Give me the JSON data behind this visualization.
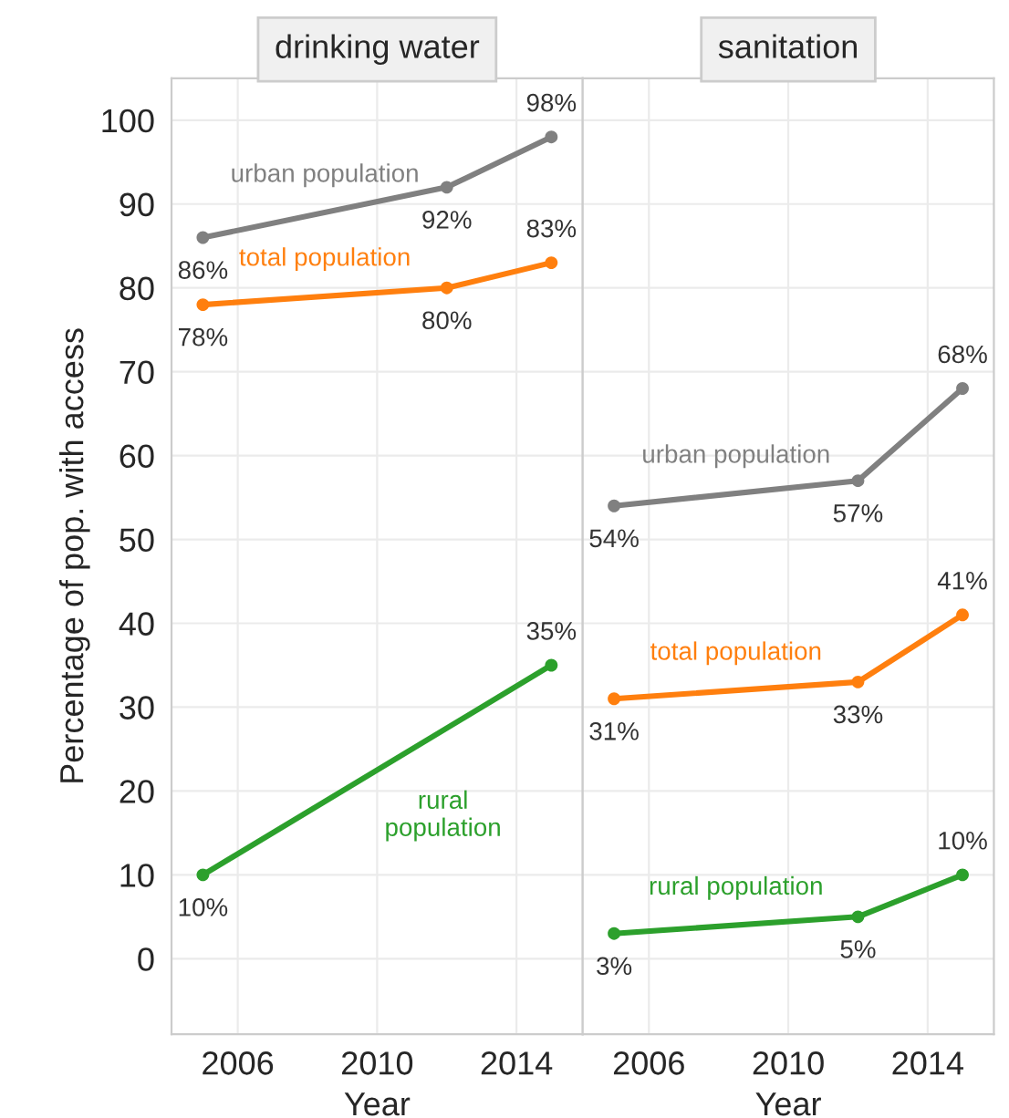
{
  "chart_data": [
    {
      "type": "line",
      "title": "drinking water",
      "xlabel": "Year",
      "ylabel": "Percentage of pop. with access",
      "x": [
        2005,
        2012,
        2015
      ],
      "xlim": [
        2004.1,
        2015.9
      ],
      "xticks": [
        2006,
        2010,
        2014
      ],
      "ylim": [
        -9,
        105
      ],
      "yticks": [
        0,
        10,
        20,
        30,
        40,
        50,
        60,
        70,
        80,
        90,
        100
      ],
      "grid": true,
      "marker": "circle",
      "line_style": "solid",
      "series": [
        {
          "name": "urban population",
          "color": "#808080",
          "values": [
            86,
            92,
            98
          ],
          "value_labels": [
            "86%",
            "92%",
            "98%"
          ]
        },
        {
          "name": "total population",
          "color": "#ff7f0e",
          "values": [
            78,
            80,
            83
          ],
          "value_labels": [
            "78%",
            "80%",
            "83%"
          ]
        },
        {
          "name": "rural population",
          "color": "#2ca02c",
          "values": [
            10,
            null,
            35
          ],
          "value_labels": [
            "10%",
            null,
            "35%"
          ]
        }
      ]
    },
    {
      "type": "line",
      "title": "sanitation",
      "xlabel": "Year",
      "x": [
        2005,
        2012,
        2015
      ],
      "xlim": [
        2004.1,
        2015.9
      ],
      "xticks": [
        2006,
        2010,
        2014
      ],
      "ylim": [
        -9,
        105
      ],
      "yticks": [
        0,
        10,
        20,
        30,
        40,
        50,
        60,
        70,
        80,
        90,
        100
      ],
      "tick_labels": "x",
      "grid": true,
      "marker": "circle",
      "line_style": "solid",
      "series": [
        {
          "name": "urban population",
          "color": "#808080",
          "values": [
            54,
            57,
            68
          ],
          "value_labels": [
            "54%",
            "57%",
            "68%"
          ]
        },
        {
          "name": "total population",
          "color": "#ff7f0e",
          "values": [
            31,
            33,
            41
          ],
          "value_labels": [
            "31%",
            "33%",
            "41%"
          ]
        },
        {
          "name": "rural population",
          "color": "#2ca02c",
          "values": [
            3,
            5,
            10
          ],
          "value_labels": [
            "3%",
            "5%",
            "10%"
          ]
        }
      ]
    }
  ]
}
